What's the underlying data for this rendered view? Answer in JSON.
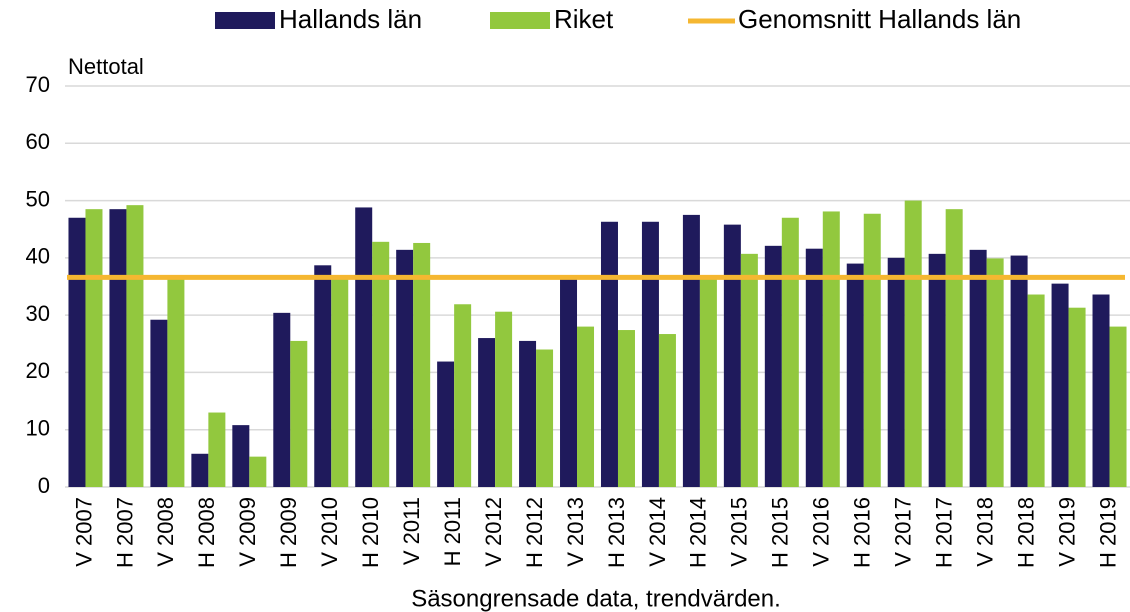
{
  "chart_data": {
    "type": "bar",
    "y_label": "Nettotal",
    "subtitle": "Säsongrensade data, trendvärden.",
    "categories": [
      "V 2007",
      "H 2007",
      "V 2008",
      "H 2008",
      "V 2009",
      "H 2009",
      "V 2010",
      "H 2010",
      "V 2011",
      "H 2011",
      "V 2012",
      "H 2012",
      "V 2013",
      "H 2013",
      "V 2014",
      "H 2014",
      "V 2015",
      "H 2015",
      "V 2016",
      "H 2016",
      "V 2017",
      "H 2017",
      "V 2018",
      "H 2018",
      "V 2019",
      "H 2019"
    ],
    "series": [
      {
        "name": "Hallands län",
        "color": "#1f1a5c",
        "values": [
          47,
          48.5,
          29.2,
          5.8,
          10.8,
          30.4,
          38.7,
          48.8,
          41.4,
          21.9,
          26,
          25.5,
          36.3,
          46.3,
          46.3,
          47.5,
          45.8,
          42.1,
          41.6,
          39,
          40,
          40.7,
          41.4,
          40.4,
          35.5,
          33.6
        ]
      },
      {
        "name": "Riket",
        "color": "#92c83e",
        "values": [
          48.5,
          49.2,
          36.5,
          13,
          5.3,
          25.5,
          37,
          42.8,
          42.6,
          31.9,
          30.6,
          24,
          28,
          27.4,
          26.7,
          36.5,
          40.7,
          47,
          48.1,
          47.7,
          50,
          48.5,
          39.9,
          33.6,
          31.3,
          28
        ]
      }
    ],
    "average": {
      "name": "Genomsnitt Hallands län",
      "color": "#f5b731",
      "value": 36.6
    },
    "ylim": [
      0,
      70
    ],
    "yticks": [
      0,
      10,
      20,
      30,
      40,
      50,
      60,
      70
    ],
    "grid": true
  }
}
